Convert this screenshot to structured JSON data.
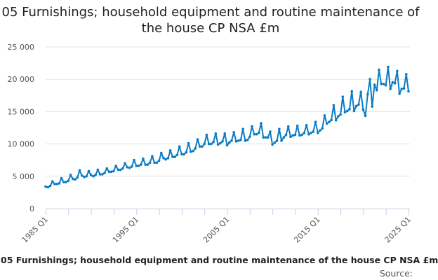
{
  "chart_data": {
    "type": "line",
    "title": "05 Furnishings; household equipment and routine maintenance of the house CP NSA £m",
    "xlabel": "",
    "ylabel": "",
    "ylim": [
      0,
      25000
    ],
    "yticks": [
      0,
      5000,
      10000,
      15000,
      20000,
      25000
    ],
    "ytick_labels": [
      "0",
      "5 000",
      "10 000",
      "15 000",
      "20 000",
      "25 000"
    ],
    "xticks_labeled": [
      "1985 Q1",
      "1995 Q1",
      "2005 Q1",
      "2015 Q1",
      "2025 Q1"
    ],
    "x_start": "1985 Q1",
    "x_end": "2025 Q1",
    "frequency": "quarterly",
    "grid": "horizontal",
    "legend": "none",
    "color": "#0b7cc4",
    "series": [
      {
        "values": [
          3400,
          3300,
          3500,
          4200,
          3800,
          3800,
          3900,
          4700,
          4100,
          4100,
          4300,
          5200,
          4600,
          4500,
          4800,
          5900,
          5100,
          4900,
          5000,
          5800,
          5200,
          5000,
          5200,
          6000,
          5300,
          5300,
          5500,
          6200,
          5700,
          5700,
          5800,
          6600,
          6000,
          6000,
          6200,
          7000,
          6400,
          6300,
          6500,
          7500,
          6600,
          6600,
          6800,
          7700,
          6800,
          6800,
          7100,
          8100,
          7100,
          7100,
          7400,
          8600,
          7800,
          7600,
          7800,
          9000,
          8000,
          8000,
          8300,
          9600,
          8400,
          8400,
          8700,
          10100,
          8800,
          8900,
          9300,
          10700,
          9600,
          9600,
          10000,
          11400,
          10000,
          10000,
          10300,
          11600,
          9900,
          10100,
          10400,
          11600,
          9800,
          10200,
          10500,
          11800,
          10400,
          10500,
          10600,
          12300,
          10500,
          10600,
          11100,
          12700,
          11500,
          11500,
          11700,
          13200,
          11000,
          11000,
          11000,
          11900,
          9900,
          10200,
          10500,
          12300,
          10500,
          11000,
          11400,
          12700,
          11100,
          11300,
          11400,
          12800,
          11300,
          11400,
          11700,
          12900,
          11500,
          11700,
          11900,
          13400,
          11700,
          12100,
          12400,
          14400,
          13140,
          13400,
          13700,
          15970,
          13670,
          14270,
          14530,
          17300,
          14900,
          15100,
          15370,
          18130,
          15100,
          15860,
          16080,
          18050,
          15290,
          14350,
          17670,
          20020,
          15790,
          19150,
          18300,
          21460,
          19260,
          19260,
          19080,
          21910,
          18500,
          19530,
          19380,
          21280,
          17750,
          18500,
          18580,
          20780,
          18130
        ]
      }
    ]
  },
  "footer": {
    "series_title": "05 Furnishings; household equipment and routine maintenance of the house CP NSA £m",
    "source_label": "Source:"
  }
}
